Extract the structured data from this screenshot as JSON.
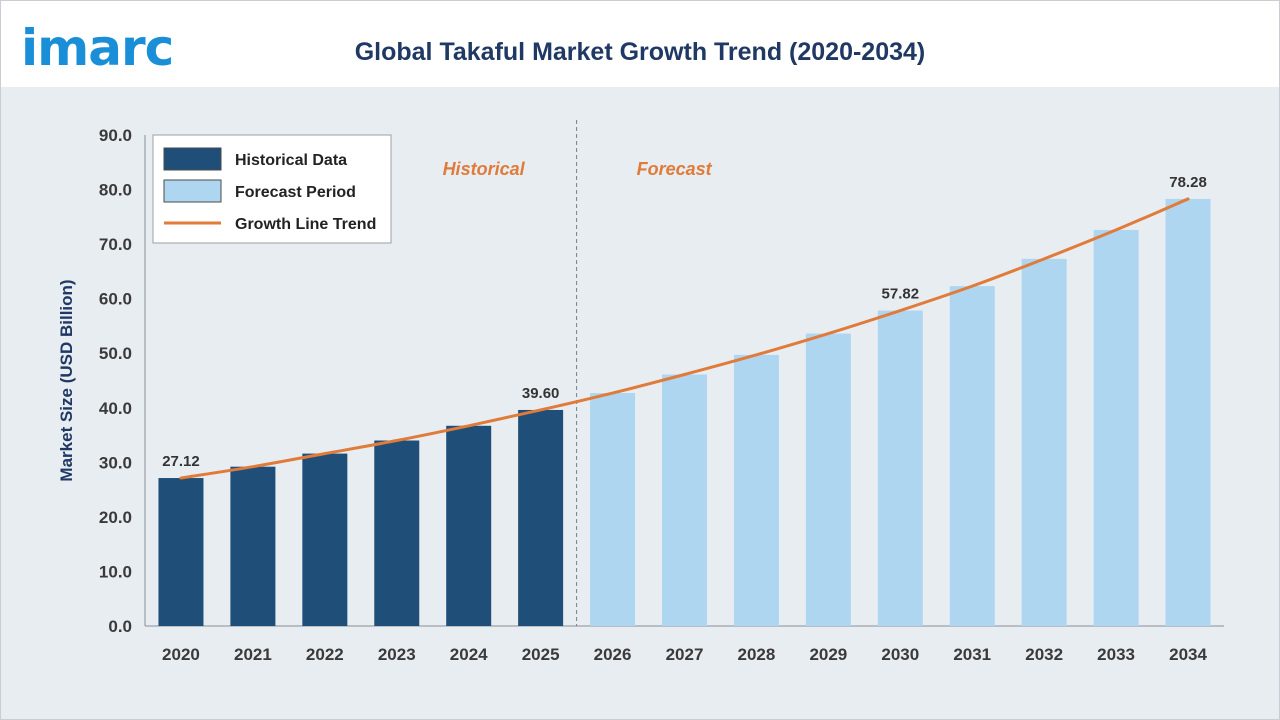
{
  "logo": {
    "text": "imarc",
    "color": "#1a8fd8"
  },
  "title": "Global Takaful Market Growth Trend (2020-2034)",
  "chart_data": {
    "type": "bar",
    "title": "Global Takaful Market Growth Trend (2020-2034)",
    "xlabel": "",
    "ylabel": "Market Size (USD Billion)",
    "ylim": [
      0,
      90
    ],
    "yticks": [
      "0.0",
      "10.0",
      "20.0",
      "30.0",
      "40.0",
      "50.0",
      "60.0",
      "70.0",
      "80.0",
      "90.0"
    ],
    "categories": [
      "2020",
      "2021",
      "2022",
      "2023",
      "2024",
      "2025",
      "2026",
      "2027",
      "2028",
      "2029",
      "2030",
      "2031",
      "2032",
      "2033",
      "2034"
    ],
    "values": [
      27.12,
      29.2,
      31.6,
      34.0,
      36.7,
      39.6,
      42.7,
      46.1,
      49.7,
      53.6,
      57.82,
      62.3,
      67.3,
      72.6,
      78.28
    ],
    "historical_count": 6,
    "data_labels": [
      {
        "index": 0,
        "text": "27.12"
      },
      {
        "index": 5,
        "text": "39.60"
      },
      {
        "index": 10,
        "text": "57.82"
      },
      {
        "index": 14,
        "text": "78.28"
      }
    ],
    "period_labels": {
      "historical": "Historical",
      "forecast": "Forecast"
    },
    "legend": {
      "placement": "top-left",
      "items": [
        {
          "label": "Historical Data",
          "kind": "bar",
          "color": "#1f4e79"
        },
        {
          "label": "Forecast Period",
          "kind": "bar",
          "color": "#aed6f1"
        },
        {
          "label": "Growth Line Trend",
          "kind": "line",
          "color": "#e07b39"
        }
      ]
    },
    "colors": {
      "historical": "#1f4e79",
      "forecast": "#aed6f1",
      "trend": "#e07b39"
    },
    "grid": false
  }
}
